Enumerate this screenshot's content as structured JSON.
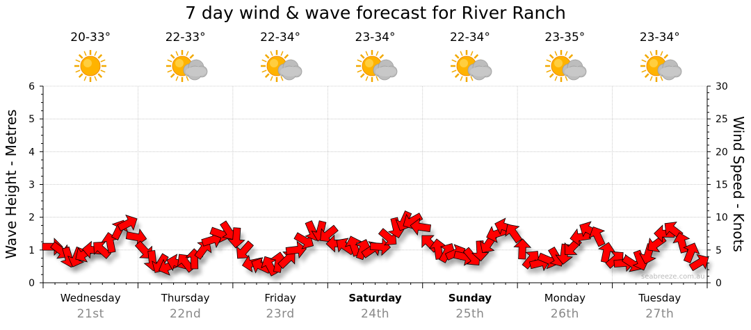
{
  "chart_data": {
    "type": "line",
    "title": "7 day wind & wave forecast for River Ranch",
    "ylabel_left": "Wave Height - Metres",
    "ylabel_right": "Wind Speed - Knots",
    "ylim_left": [
      0,
      6
    ],
    "ylim_right": [
      0,
      30
    ],
    "yticks_left": [
      "0",
      "1",
      "2",
      "3",
      "4",
      "5",
      "6"
    ],
    "yticks_right": [
      "0",
      "5",
      "10",
      "15",
      "20",
      "25",
      "30"
    ],
    "grid": true,
    "days": [
      {
        "name": "Wednesday",
        "date": "21st",
        "bold": false,
        "temp": "20-33°",
        "icon": "sun-icon"
      },
      {
        "name": "Thursday",
        "date": "22nd",
        "bold": false,
        "temp": "22-33°",
        "icon": "partly-cloudy-icon"
      },
      {
        "name": "Friday",
        "date": "23rd",
        "bold": false,
        "temp": "22-34°",
        "icon": "partly-cloudy-icon"
      },
      {
        "name": "Saturday",
        "date": "24th",
        "bold": true,
        "temp": "23-34°",
        "icon": "partly-cloudy-icon"
      },
      {
        "name": "Sunday",
        "date": "25th",
        "bold": true,
        "temp": "22-34°",
        "icon": "partly-cloudy-icon"
      },
      {
        "name": "Monday",
        "date": "26th",
        "bold": false,
        "temp": "23-35°",
        "icon": "partly-cloudy-icon"
      },
      {
        "name": "Tuesday",
        "date": "27th",
        "bold": false,
        "temp": "23-34°",
        "icon": "partly-cloudy-icon"
      }
    ],
    "series": [
      {
        "name": "Wind Speed",
        "unit": "knots",
        "color": "#ff0000",
        "interval_hours": 3,
        "speed_knots": [
          5.5,
          5,
          4,
          4,
          4.5,
          5,
          5,
          6,
          8,
          9,
          7,
          5,
          3.5,
          3,
          2.5,
          3,
          3,
          3.5,
          5,
          6.5,
          7.5,
          8,
          7,
          5,
          3,
          2.5,
          2.5,
          3,
          3.5,
          5,
          6.5,
          8,
          8,
          7.5,
          6,
          5.5,
          5.5,
          5,
          5,
          5.5,
          7,
          8.5,
          9.5,
          9.5,
          8.5,
          6,
          5,
          4.5,
          4.5,
          4,
          4,
          5,
          6,
          7.5,
          8.5,
          7.5,
          5,
          3.5,
          3,
          3.5,
          4,
          4.5,
          5.5,
          7,
          8,
          7,
          4.5,
          3.5,
          3,
          3,
          3.5,
          4.5,
          6,
          7.5,
          8,
          6,
          4.5,
          3
        ]
      }
    ],
    "watermark": "seabreeze.com.au"
  }
}
